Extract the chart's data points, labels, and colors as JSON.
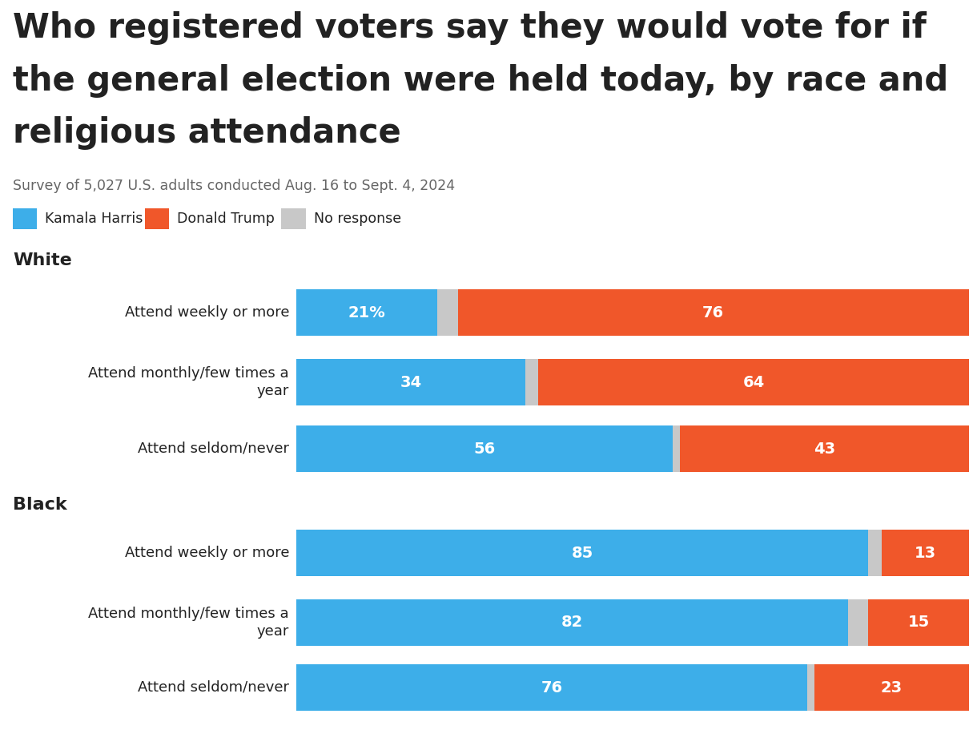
{
  "title_line1": "Who registered voters say they would vote for if",
  "title_line2": "the general election were held today, by race and",
  "title_line3": "religious attendance",
  "subtitle": "Survey of 5,027 U.S. adults conducted Aug. 16 to Sept. 4, 2024",
  "legend_items": [
    "Kamala Harris",
    "Donald Trump",
    "No response"
  ],
  "legend_colors": [
    "#3daee9",
    "#f0572a",
    "#c8c8c8"
  ],
  "harris_color": "#3daee9",
  "trump_color": "#f0572a",
  "no_response_color": "#c8c8c8",
  "background_color": "#ffffff",
  "text_color": "#222222",
  "subtitle_color": "#666666",
  "rows": [
    {
      "label": "Attend weekly or more",
      "harris": 21,
      "no_resp": 3,
      "trump": 76,
      "first_pct": true
    },
    {
      "label": "Attend monthly/few times a\nyear",
      "harris": 34,
      "no_resp": 2,
      "trump": 64,
      "first_pct": false
    },
    {
      "label": "Attend seldom/never",
      "harris": 56,
      "no_resp": 1,
      "trump": 43,
      "first_pct": false
    },
    {
      "label": "Attend weekly or more",
      "harris": 85,
      "no_resp": 2,
      "trump": 13,
      "first_pct": false
    },
    {
      "label": "Attend monthly/few times a\nyear",
      "harris": 82,
      "no_resp": 3,
      "trump": 15,
      "first_pct": false
    },
    {
      "label": "Attend seldom/never",
      "harris": 76,
      "no_resp": 1,
      "trump": 23,
      "first_pct": false
    }
  ],
  "group_headers": [
    {
      "label": "White",
      "before_row": 0
    },
    {
      "label": "Black",
      "before_row": 3
    }
  ]
}
